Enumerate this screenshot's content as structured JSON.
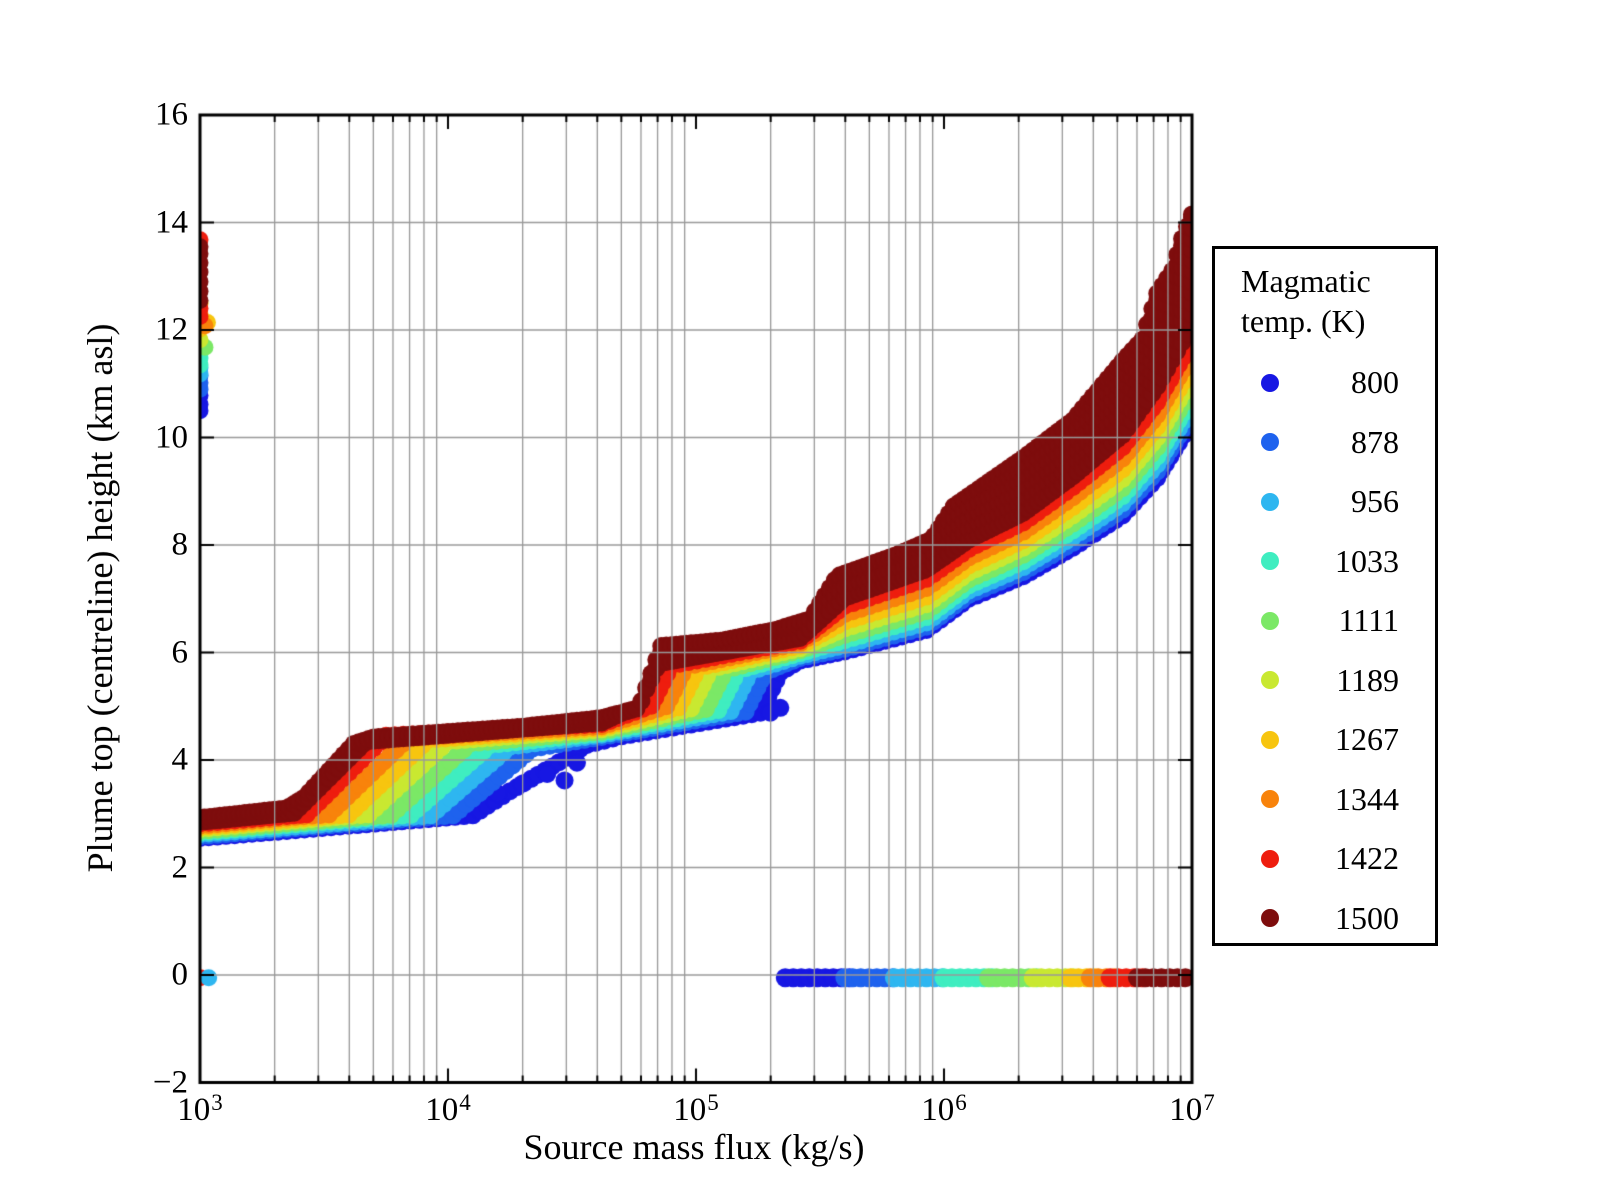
{
  "chart_data": {
    "type": "scatter",
    "title": "",
    "xlabel": "Source mass flux (kg/s)",
    "ylabel": "Plume top (centreline) height (km asl)",
    "x_scale": "log",
    "xlim": [
      1000,
      10000000
    ],
    "ylim": [
      -2,
      16
    ],
    "grid": "on",
    "x_ticks": [
      {
        "log": 3,
        "base": "10",
        "sup": "3"
      },
      {
        "log": 4,
        "base": "10",
        "sup": "4"
      },
      {
        "log": 5,
        "base": "10",
        "sup": "5"
      },
      {
        "log": 6,
        "base": "10",
        "sup": "6"
      },
      {
        "log": 7,
        "base": "10",
        "sup": "7"
      }
    ],
    "y_ticks": [
      {
        "v": -2,
        "label": "−2"
      },
      {
        "v": 0,
        "label": "0"
      },
      {
        "v": 2,
        "label": "2"
      },
      {
        "v": 4,
        "label": "4"
      },
      {
        "v": 6,
        "label": "6"
      },
      {
        "v": 8,
        "label": "8"
      },
      {
        "v": 10,
        "label": "10"
      },
      {
        "v": 12,
        "label": "12"
      },
      {
        "v": 14,
        "label": "14"
      },
      {
        "v": 16,
        "label": "16"
      }
    ],
    "legend": {
      "title_line1": "Magmatic",
      "title_line2": "temp. (K)",
      "items": [
        {
          "temp": 800,
          "label": "800",
          "color": "#1717E3"
        },
        {
          "temp": 878,
          "label": "878",
          "color": "#1E62EE"
        },
        {
          "temp": 956,
          "label": "956",
          "color": "#2EB6F0"
        },
        {
          "temp": 1033,
          "label": "1033",
          "color": "#3FEDC0"
        },
        {
          "temp": 1111,
          "label": "1111",
          "color": "#7BE866"
        },
        {
          "temp": 1189,
          "label": "1189",
          "color": "#C9E831"
        },
        {
          "temp": 1267,
          "label": "1267",
          "color": "#F7C50F"
        },
        {
          "temp": 1344,
          "label": "1344",
          "color": "#F8830B"
        },
        {
          "temp": 1422,
          "label": "1422",
          "color": "#EE1D0E"
        },
        {
          "temp": 1500,
          "label": "1500",
          "color": "#7E0D0D"
        }
      ]
    },
    "axis_color": "#000000",
    "grid_color": "#999999",
    "marker_radius_px": 9,
    "series": [
      {
        "temp": 800,
        "color": "#1717E3",
        "knots": [
          [
            3.0,
            2.55
          ],
          [
            3.35,
            2.68
          ],
          [
            4.1,
            2.97
          ],
          [
            4.25,
            3.42
          ],
          [
            4.42,
            3.88
          ],
          [
            4.56,
            4.28
          ],
          [
            4.7,
            4.44
          ],
          [
            5.26,
            4.88
          ],
          [
            5.34,
            5.63
          ],
          [
            5.42,
            5.85
          ],
          [
            5.6,
            6.02
          ],
          [
            5.93,
            6.42
          ],
          [
            6.1,
            7.0
          ],
          [
            6.32,
            7.42
          ],
          [
            6.52,
            7.95
          ],
          [
            6.72,
            8.55
          ],
          [
            6.86,
            9.25
          ],
          [
            7.0,
            10.3
          ]
        ],
        "extra": [
          [
            4.2,
            3.38
          ],
          [
            4.3,
            3.56
          ],
          [
            4.4,
            3.74
          ],
          [
            4.47,
            3.62
          ],
          [
            4.52,
            3.95
          ],
          [
            5.18,
            5.52
          ],
          [
            5.22,
            5.6
          ],
          [
            5.26,
            5.7
          ],
          [
            5.3,
            5.8
          ],
          [
            5.3,
            4.88
          ],
          [
            5.34,
            4.97
          ]
        ]
      },
      {
        "temp": 878,
        "color": "#1E62EE",
        "knots": [
          [
            3.0,
            2.58
          ],
          [
            3.35,
            2.72
          ],
          [
            4.02,
            2.97
          ],
          [
            4.34,
            4.21
          ],
          [
            4.62,
            4.43
          ],
          [
            5.2,
            4.9
          ],
          [
            5.28,
            5.64
          ],
          [
            5.42,
            5.9
          ],
          [
            5.6,
            6.07
          ],
          [
            5.93,
            6.48
          ],
          [
            6.1,
            7.07
          ],
          [
            6.32,
            7.5
          ],
          [
            6.52,
            8.04
          ],
          [
            6.72,
            8.66
          ],
          [
            6.86,
            9.37
          ],
          [
            7.0,
            10.43
          ]
        ],
        "extra": [
          [
            5.14,
            5.5
          ],
          [
            5.18,
            5.56
          ]
        ]
      },
      {
        "temp": 956,
        "color": "#2EB6F0",
        "knots": [
          [
            3.0,
            2.62
          ],
          [
            3.35,
            2.75
          ],
          [
            3.93,
            2.97
          ],
          [
            4.25,
            4.25
          ],
          [
            4.62,
            4.47
          ],
          [
            5.14,
            4.91
          ],
          [
            5.22,
            5.65
          ],
          [
            5.42,
            5.94
          ],
          [
            5.6,
            6.14
          ],
          [
            5.93,
            6.56
          ],
          [
            6.1,
            7.15
          ],
          [
            6.32,
            7.59
          ],
          [
            6.52,
            8.15
          ],
          [
            6.72,
            8.78
          ],
          [
            6.86,
            9.5
          ],
          [
            7.0,
            10.57
          ]
        ],
        "extra": [
          [
            5.11,
            5.38
          ]
        ]
      },
      {
        "temp": 1033,
        "color": "#3FEDC0",
        "knots": [
          [
            3.0,
            2.65
          ],
          [
            3.35,
            2.79
          ],
          [
            3.85,
            2.98
          ],
          [
            4.17,
            4.28
          ],
          [
            4.62,
            4.5
          ],
          [
            5.09,
            4.93
          ],
          [
            5.17,
            5.67
          ],
          [
            5.42,
            5.99
          ],
          [
            5.6,
            6.23
          ],
          [
            5.93,
            6.66
          ],
          [
            6.1,
            7.25
          ],
          [
            6.32,
            7.7
          ],
          [
            6.52,
            8.27
          ],
          [
            6.72,
            8.91
          ],
          [
            6.86,
            9.65
          ],
          [
            7.0,
            10.73
          ]
        ],
        "extra": [
          [
            5.07,
            5.42
          ]
        ]
      },
      {
        "temp": 1111,
        "color": "#7BE866",
        "knots": [
          [
            3.0,
            2.68
          ],
          [
            3.35,
            2.82
          ],
          [
            3.77,
            2.98
          ],
          [
            4.09,
            4.31
          ],
          [
            4.62,
            4.53
          ],
          [
            5.04,
            4.95
          ],
          [
            5.12,
            5.68
          ],
          [
            5.42,
            6.04
          ],
          [
            5.6,
            6.33
          ],
          [
            5.93,
            6.77
          ],
          [
            6.1,
            7.36
          ],
          [
            6.32,
            7.82
          ],
          [
            6.52,
            8.4
          ],
          [
            6.72,
            9.06
          ],
          [
            6.86,
            9.82
          ],
          [
            7.0,
            10.91
          ]
        ],
        "extra": []
      },
      {
        "temp": 1189,
        "color": "#C9E831",
        "knots": [
          [
            3.0,
            2.72
          ],
          [
            3.35,
            2.86
          ],
          [
            3.68,
            2.99
          ],
          [
            4.0,
            4.35
          ],
          [
            4.62,
            4.57
          ],
          [
            4.98,
            4.96
          ],
          [
            5.06,
            5.7
          ],
          [
            5.42,
            6.08
          ],
          [
            5.6,
            6.45
          ],
          [
            5.93,
            6.9
          ],
          [
            6.1,
            7.49
          ],
          [
            6.32,
            7.95
          ],
          [
            6.52,
            8.55
          ],
          [
            6.72,
            9.23
          ],
          [
            6.86,
            10.0
          ],
          [
            7.0,
            11.11
          ]
        ],
        "extra": [
          [
            5.01,
            5.4
          ]
        ]
      },
      {
        "temp": 1267,
        "color": "#F7C50F",
        "knots": [
          [
            3.0,
            2.75
          ],
          [
            3.35,
            2.89
          ],
          [
            3.6,
            2.99
          ],
          [
            3.92,
            4.38
          ],
          [
            4.62,
            4.6
          ],
          [
            4.93,
            4.98
          ],
          [
            5.01,
            5.72
          ],
          [
            5.42,
            6.13
          ],
          [
            5.6,
            6.58
          ],
          [
            5.93,
            7.04
          ],
          [
            6.1,
            7.62
          ],
          [
            6.32,
            8.09
          ],
          [
            6.52,
            8.71
          ],
          [
            6.72,
            9.41
          ],
          [
            6.86,
            10.2
          ],
          [
            7.0,
            11.32
          ]
        ],
        "extra": [
          [
            4.96,
            5.4
          ]
        ]
      },
      {
        "temp": 1344,
        "color": "#F8830B",
        "knots": [
          [
            3.0,
            2.78
          ],
          [
            3.35,
            2.93
          ],
          [
            3.52,
            2.99
          ],
          [
            3.84,
            4.41
          ],
          [
            4.62,
            4.63
          ],
          [
            4.88,
            5.0
          ],
          [
            4.96,
            5.74
          ],
          [
            5.42,
            6.18
          ],
          [
            5.6,
            6.72
          ],
          [
            5.93,
            7.2
          ],
          [
            6.1,
            7.77
          ],
          [
            6.32,
            8.25
          ],
          [
            6.52,
            8.89
          ],
          [
            6.72,
            9.61
          ],
          [
            6.86,
            10.42
          ],
          [
            7.0,
            11.55
          ]
        ],
        "extra": [
          [
            4.91,
            5.42
          ]
        ]
      },
      {
        "temp": 1422,
        "color": "#EE1D0E",
        "knots": [
          [
            3.0,
            2.82
          ],
          [
            3.35,
            2.96
          ],
          [
            3.43,
            2.99
          ],
          [
            3.75,
            4.45
          ],
          [
            4.62,
            4.67
          ],
          [
            4.82,
            5.01
          ],
          [
            4.9,
            5.76
          ],
          [
            5.42,
            6.22
          ],
          [
            5.6,
            6.87
          ],
          [
            5.93,
            7.37
          ],
          [
            6.1,
            7.93
          ],
          [
            6.32,
            8.42
          ],
          [
            6.52,
            9.08
          ],
          [
            6.72,
            9.82
          ],
          [
            6.86,
            10.66
          ],
          [
            7.0,
            11.78
          ]
        ],
        "extra": []
      },
      {
        "temp": 1500,
        "color": "#7E0D0D",
        "knots": [
          [
            3.0,
            2.85
          ],
          [
            3.38,
            3.02
          ],
          [
            3.67,
            4.35
          ],
          [
            4.62,
            4.7
          ],
          [
            4.77,
            5.03
          ],
          [
            4.85,
            5.8
          ],
          [
            5.42,
            6.27
          ],
          [
            5.6,
            7.02
          ],
          [
            5.93,
            7.55
          ],
          [
            6.1,
            8.1
          ],
          [
            6.32,
            8.6
          ],
          [
            6.52,
            9.28
          ],
          [
            6.72,
            10.05
          ],
          [
            6.86,
            10.95
          ],
          [
            7.0,
            12.1
          ]
        ],
        "top_knots": [
          [
            3.0,
            2.92
          ],
          [
            3.35,
            3.1
          ],
          [
            3.42,
            3.3
          ],
          [
            3.62,
            4.3
          ],
          [
            3.7,
            4.42
          ],
          [
            4.3,
            4.62
          ],
          [
            4.62,
            4.78
          ],
          [
            4.77,
            4.97
          ],
          [
            4.86,
            6.12
          ],
          [
            5.1,
            6.22
          ],
          [
            5.32,
            6.42
          ],
          [
            5.46,
            6.62
          ],
          [
            5.57,
            7.42
          ],
          [
            5.8,
            7.8
          ],
          [
            5.95,
            8.1
          ],
          [
            6.04,
            8.72
          ],
          [
            6.32,
            9.62
          ],
          [
            6.52,
            10.32
          ],
          [
            6.72,
            11.42
          ],
          [
            6.8,
            11.82
          ],
          [
            6.86,
            12.68
          ],
          [
            6.92,
            13.1
          ],
          [
            6.96,
            13.7
          ],
          [
            7.0,
            14.15
          ]
        ],
        "extra": []
      }
    ],
    "left_column": [
      {
        "temp": 800,
        "dots": [
          [
            3.0,
            10.5
          ],
          [
            3.0,
            10.62
          ],
          [
            3.0,
            10.78
          ]
        ]
      },
      {
        "temp": 878,
        "dots": [
          [
            3.0,
            10.9
          ],
          [
            3.0,
            11.02
          ],
          [
            3.0,
            11.15
          ]
        ]
      },
      {
        "temp": 956,
        "dots": [
          [
            3.0,
            11.18
          ],
          [
            3.0,
            11.3
          ]
        ]
      },
      {
        "temp": 1033,
        "dots": [
          [
            3.0,
            11.35
          ],
          [
            3.0,
            11.48
          ],
          [
            3.0,
            11.6
          ]
        ]
      },
      {
        "temp": 1111,
        "dots": [
          [
            3.02,
            11.68
          ]
        ]
      },
      {
        "temp": 1189,
        "dots": [
          [
            3.0,
            11.82
          ]
        ]
      },
      {
        "temp": 1267,
        "dots": [
          [
            3.0,
            12.02
          ],
          [
            3.03,
            12.14
          ],
          [
            3.0,
            12.3
          ],
          [
            3.0,
            12.5
          ]
        ]
      },
      {
        "temp": 1344,
        "dots": [
          [
            3.02,
            12.08
          ]
        ]
      },
      {
        "temp": 1422,
        "dots": [
          [
            3.0,
            12.25
          ],
          [
            3.0,
            12.4
          ],
          [
            3.0,
            13.68
          ]
        ]
      },
      {
        "temp": 1500,
        "dots": [
          [
            3.0,
            12.55
          ],
          [
            3.0,
            12.72
          ],
          [
            3.0,
            12.9
          ],
          [
            3.0,
            13.08
          ],
          [
            3.0,
            13.25
          ],
          [
            3.0,
            13.42
          ],
          [
            3.0,
            13.55
          ]
        ]
      }
    ],
    "ground_band": {
      "y": -0.05,
      "segments": [
        {
          "temp": 800,
          "t0": 5.36,
          "t1": 5.62
        },
        {
          "temp": 878,
          "t0": 5.6,
          "t1": 5.82
        },
        {
          "temp": 956,
          "t0": 5.8,
          "t1": 6.02
        },
        {
          "temp": 1033,
          "t0": 6.0,
          "t1": 6.2
        },
        {
          "temp": 1111,
          "t0": 6.18,
          "t1": 6.38
        },
        {
          "temp": 1189,
          "t0": 6.36,
          "t1": 6.53
        },
        {
          "temp": 1267,
          "t0": 6.51,
          "t1": 6.61
        },
        {
          "temp": 1344,
          "t0": 6.59,
          "t1": 6.69
        },
        {
          "temp": 1422,
          "t0": 6.67,
          "t1": 6.8
        },
        {
          "temp": 1500,
          "t0": 6.78,
          "t1": 7.0
        }
      ]
    },
    "ground_dots": [
      {
        "temp": 1422,
        "t": 3.0
      },
      {
        "temp": 956,
        "t": 3.035
      }
    ]
  }
}
